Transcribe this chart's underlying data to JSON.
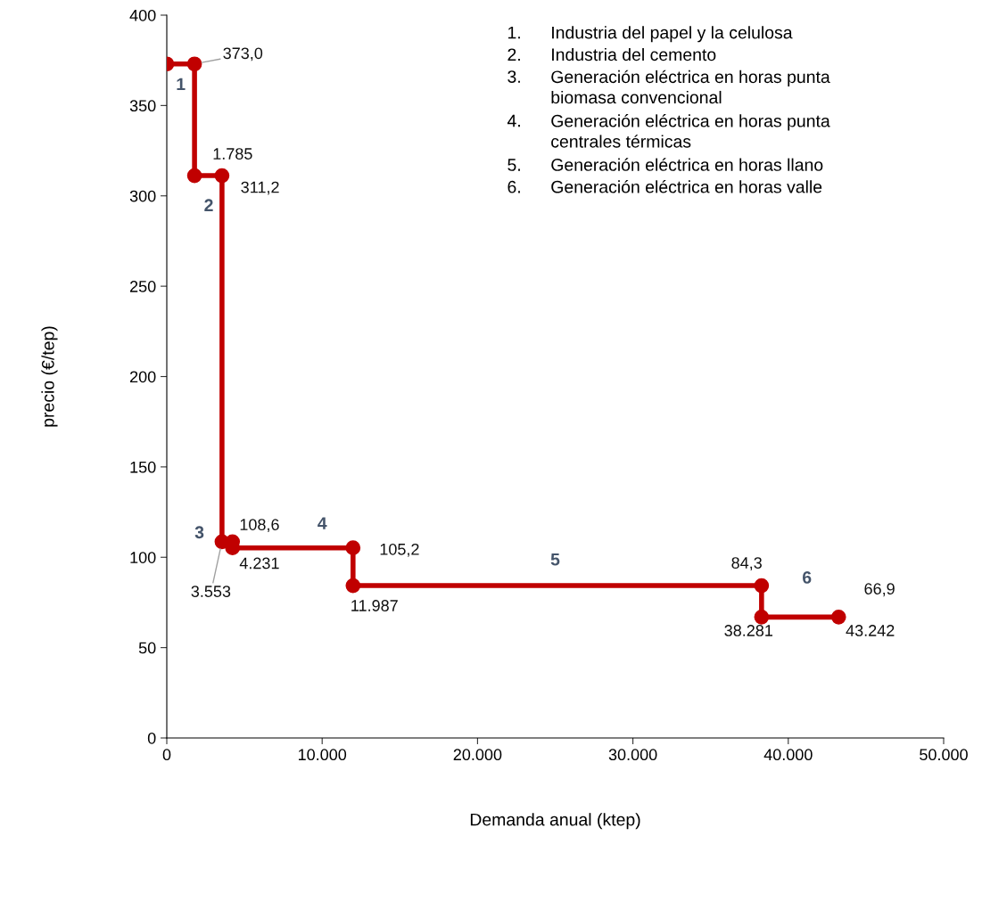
{
  "chart_data": {
    "type": "line",
    "xlabel": "Demanda anual (ktep)",
    "ylabel": "precio (€/tep)",
    "x": [
      0,
      1785,
      1785,
      3553,
      3553,
      4231,
      4231,
      11987,
      11987,
      38281,
      38281,
      43242
    ],
    "series": [
      {
        "color": "#c00000",
        "values": [
          373.0,
          373.0,
          311.2,
          311.2,
          108.6,
          108.6,
          105.2,
          105.2,
          84.3,
          84.3,
          66.9,
          66.9
        ]
      }
    ],
    "marker": "circle",
    "line_style": "solid",
    "grid": false,
    "legend": false,
    "xlim": [
      0,
      50000
    ],
    "xticks": [
      0,
      {
        "value": 10000,
        "label": "10.000"
      },
      {
        "value": 20000,
        "label": "20.000"
      },
      {
        "value": 30000,
        "label": "30.000"
      },
      {
        "value": 40000,
        "label": "40.000"
      },
      {
        "value": 50000,
        "label": "50.000"
      }
    ],
    "ylim": [
      0,
      400
    ],
    "yticks": [
      0,
      50,
      100,
      150,
      200,
      250,
      300,
      350,
      400
    ],
    "annotations": [
      {
        "text": "373,0",
        "x": 1785,
        "y": 373.0
      },
      {
        "text": "1.785",
        "x": 1785,
        "y": 311.2
      },
      {
        "text": "311,2",
        "x": 3553,
        "y": 311.2
      },
      {
        "text": "3.553",
        "x": 3553,
        "y": 108.6
      },
      {
        "text": "108,6",
        "x": 4231,
        "y": 108.6
      },
      {
        "text": "4.231",
        "x": 4231,
        "y": 105.2
      },
      {
        "text": "105,2",
        "x": 11987,
        "y": 105.2
      },
      {
        "text": "11.987",
        "x": 11987,
        "y": 84.3
      },
      {
        "text": "84,3",
        "x": 38281,
        "y": 84.3
      },
      {
        "text": "38.281",
        "x": 38281,
        "y": 66.9
      },
      {
        "text": "43.242",
        "x": 43242,
        "y": 66.9
      },
      {
        "text": "66,9",
        "x": 43242,
        "y": 66.9
      },
      "1",
      "2",
      "3",
      "4",
      "5",
      "6",
      "1. Industria del papel y la celulosa",
      "2. Industria del cemento",
      "3. Generación eléctrica en horas punta\nbiomasa convencional",
      "4. Generación eléctrica en horas punta\ncentrales térmicas",
      "5. Generación eléctrica en horas llano",
      "6. Generación eléctrica en horas valle"
    ]
  }
}
